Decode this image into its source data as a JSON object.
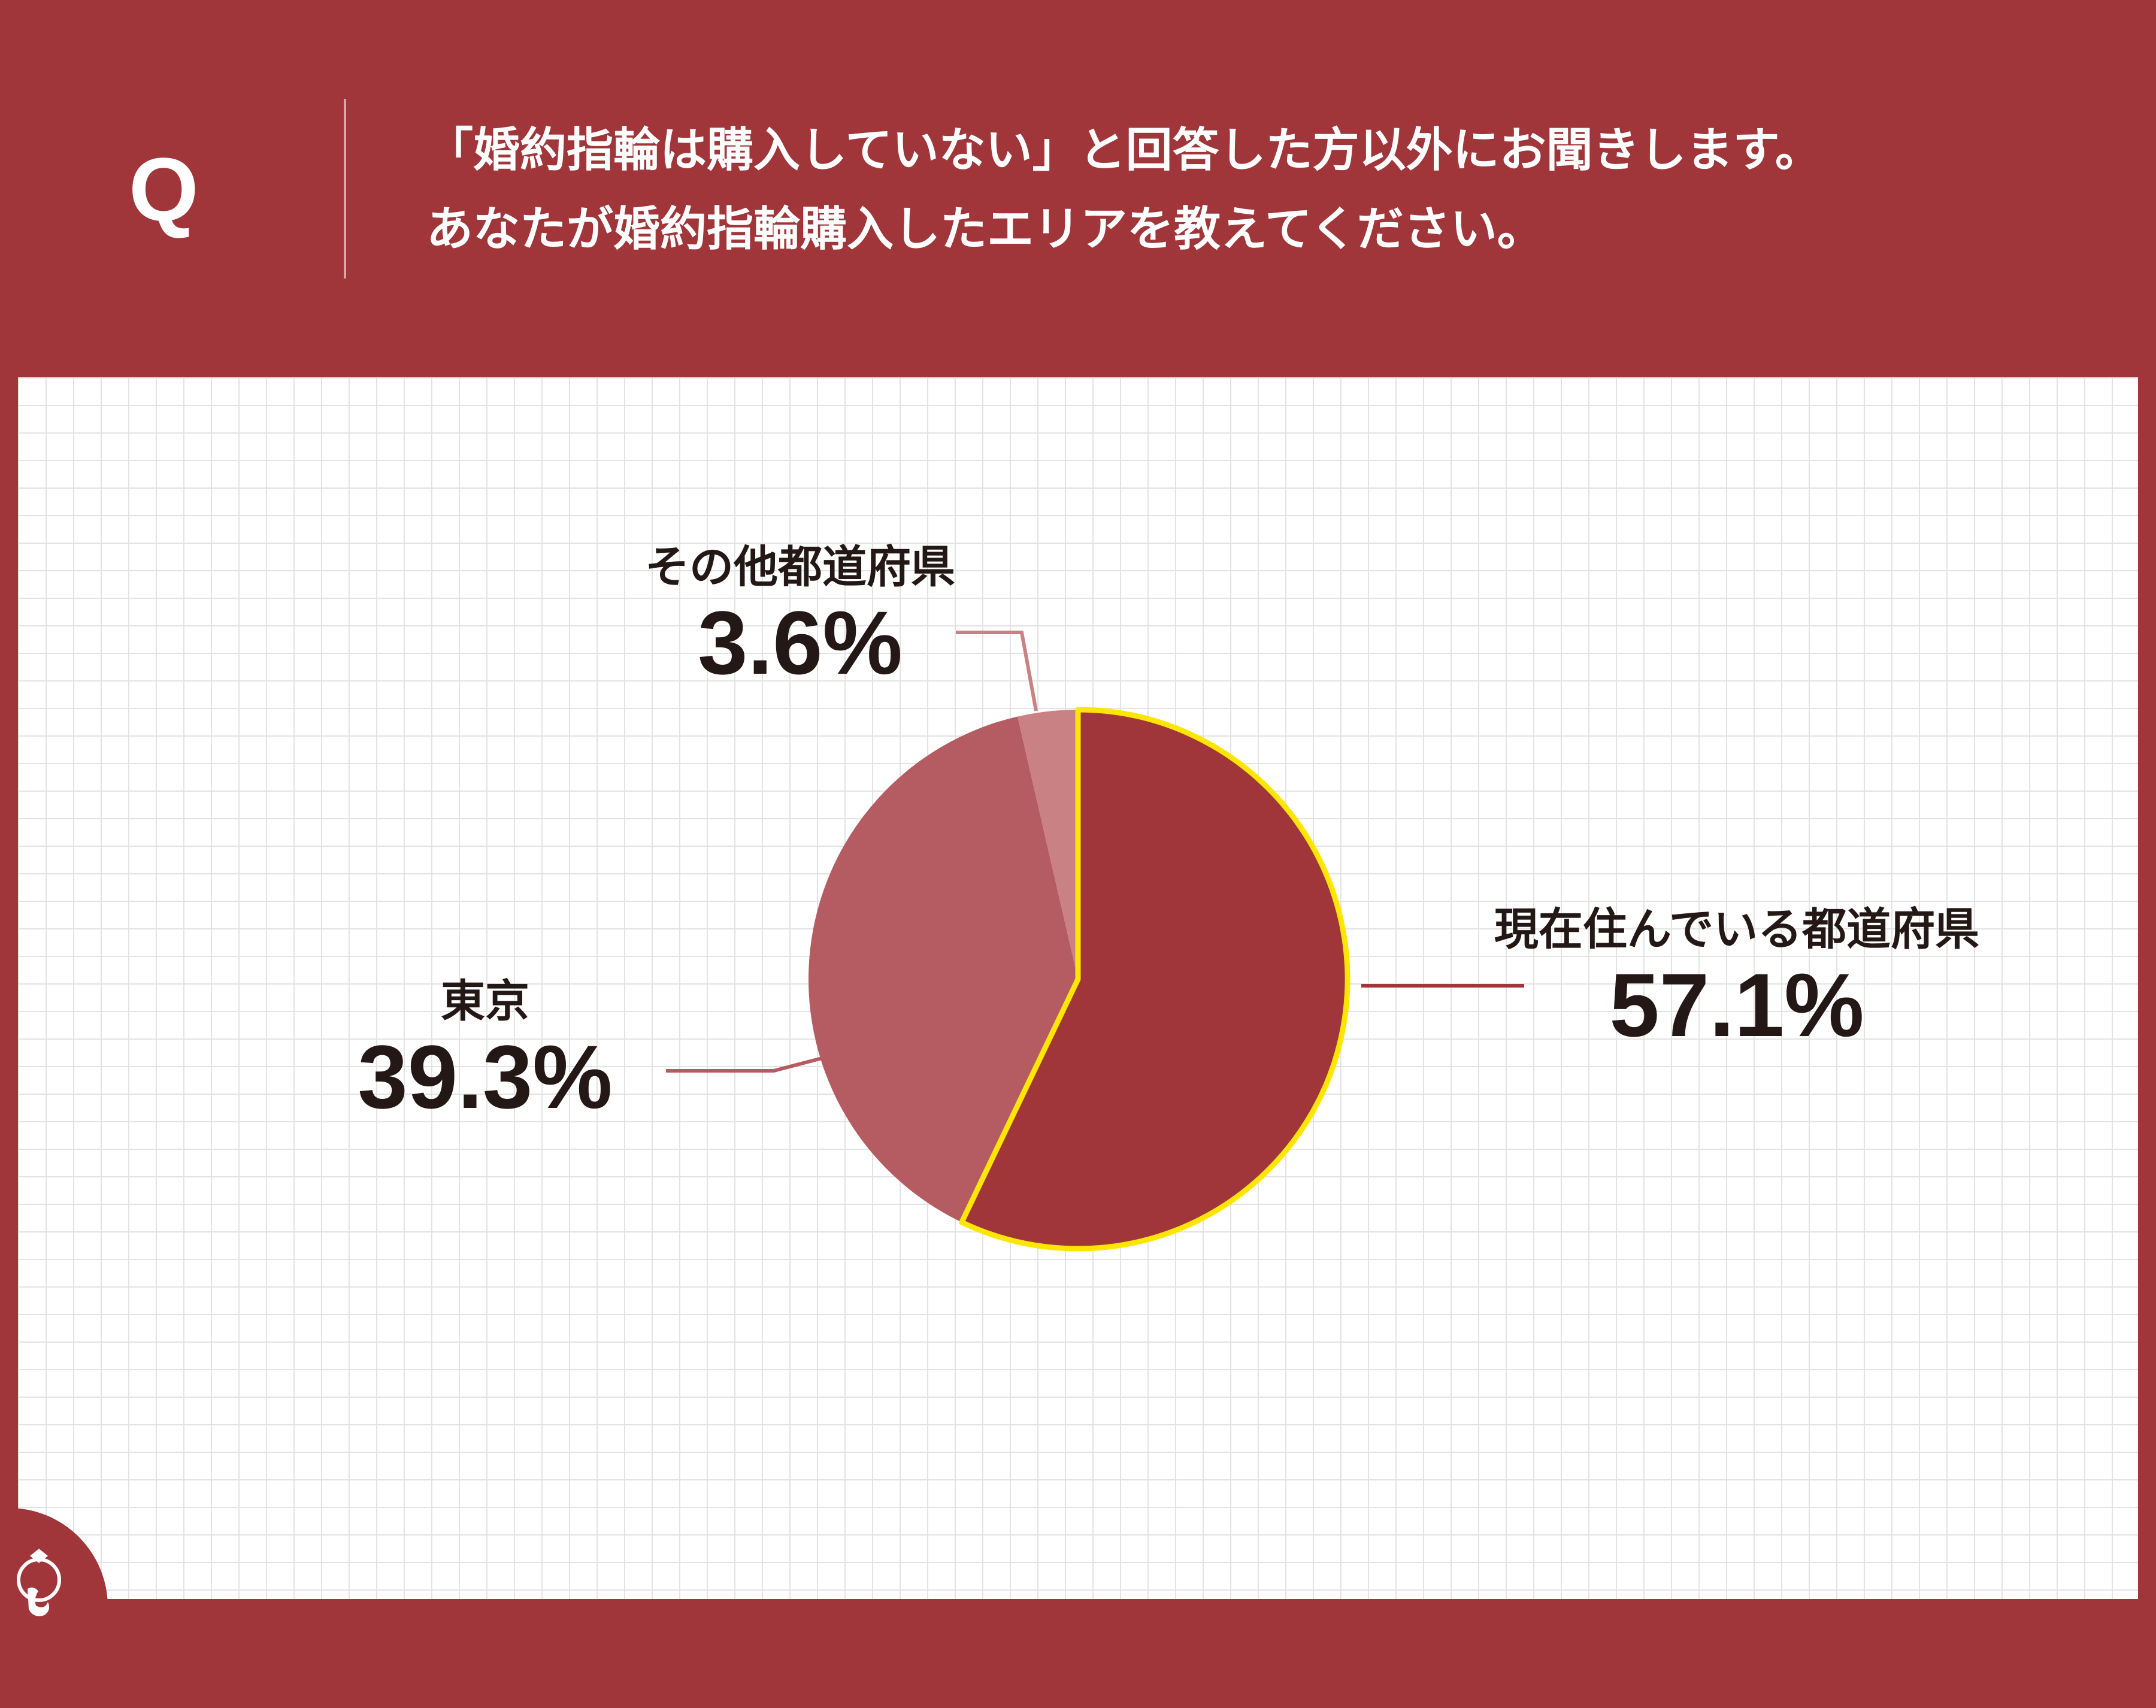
{
  "header": {
    "q_label": "Q",
    "question_line1": "「婚約指輪は購入していない」と回答した方以外にお聞きします。",
    "question_line2": "あなたが婚約指輪購入したエリアを教えてください。"
  },
  "colors": {
    "background": "#a0363a",
    "slice_main": "#a0363a",
    "slice_second": "#b55c62",
    "slice_third": "#c98184",
    "highlight_outline": "#ffe600",
    "text": "#231815"
  },
  "chart_data": {
    "type": "pie",
    "slices": [
      {
        "label": "現在住んでいる都道府県",
        "value": 57.1,
        "display": "57.1%",
        "color": "#a0363a",
        "highlighted": true
      },
      {
        "label": "東京",
        "value": 39.3,
        "display": "39.3%",
        "color": "#b55c62",
        "highlighted": false
      },
      {
        "label": "その他都道府県",
        "value": 3.6,
        "display": "3.6%",
        "color": "#c98184",
        "highlighted": false
      }
    ],
    "start_angle": "12 o'clock",
    "direction": "clockwise"
  }
}
